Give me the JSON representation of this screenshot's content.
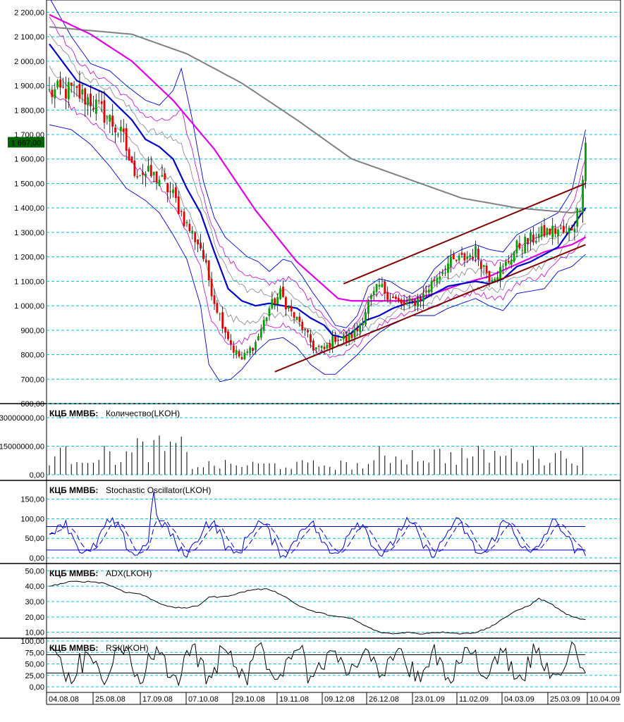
{
  "chart_data": {
    "type": "candlestick",
    "price_axis": {
      "ticks": [
        "2 200,00",
        "2 100,00",
        "2 000,00",
        "1 900,00",
        "1 800,00",
        "1 700,00",
        "1 600,00",
        "1 500,00",
        "1 400,00",
        "1 300,00",
        "1 200,00",
        "1 100,00",
        "1 000,00",
        "900,00",
        "800,00",
        "700,00",
        "600,00"
      ],
      "range": [
        600,
        2250
      ],
      "current_price_tag": "1 667,00"
    },
    "x_axis": {
      "dates": [
        "04.08.08",
        "25.08.08",
        "17.09.08",
        "07.10.08",
        "29.10.08",
        "19.11.08",
        "09.12.08",
        "26.12.08",
        "23.01.09",
        "11.02.09",
        "04.03.09",
        "25.03.09",
        "10.04.09"
      ],
      "bar_count": 175
    },
    "price_series_anchors": [
      [
        0,
        1870
      ],
      [
        8,
        1880
      ],
      [
        15,
        1840
      ],
      [
        22,
        1760
      ],
      [
        27,
        1680
      ],
      [
        30,
        1560
      ],
      [
        35,
        1540
      ],
      [
        40,
        1520
      ],
      [
        45,
        1450
      ],
      [
        50,
        1330
      ],
      [
        55,
        1240
      ],
      [
        60,
        1020
      ],
      [
        64,
        900
      ],
      [
        67,
        820
      ],
      [
        70,
        780
      ],
      [
        75,
        850
      ],
      [
        80,
        990
      ],
      [
        84,
        1050
      ],
      [
        88,
        970
      ],
      [
        92,
        910
      ],
      [
        96,
        830
      ],
      [
        100,
        820
      ],
      [
        104,
        870
      ],
      [
        108,
        860
      ],
      [
        112,
        900
      ],
      [
        116,
        1010
      ],
      [
        120,
        1080
      ],
      [
        124,
        1040
      ],
      [
        128,
        1000
      ],
      [
        132,
        1010
      ],
      [
        136,
        1040
      ],
      [
        140,
        1110
      ],
      [
        145,
        1170
      ],
      [
        150,
        1190
      ],
      [
        155,
        1220
      ],
      [
        160,
        1120
      ],
      [
        165,
        1150
      ],
      [
        170,
        1240
      ],
      [
        175,
        1270
      ],
      [
        180,
        1300
      ],
      [
        185,
        1310
      ],
      [
        188,
        1290
      ],
      [
        191,
        1340
      ],
      [
        193,
        1420
      ],
      [
        195,
        1667
      ]
    ],
    "moving_averages": [
      {
        "name": "MA200",
        "color": "#808080",
        "anchors": [
          [
            0,
            2140
          ],
          [
            30,
            2110
          ],
          [
            50,
            2030
          ],
          [
            70,
            1910
          ],
          [
            90,
            1760
          ],
          [
            110,
            1600
          ],
          [
            130,
            1520
          ],
          [
            150,
            1440
          ],
          [
            170,
            1400
          ],
          [
            190,
            1380
          ],
          [
            195,
            1390
          ]
        ]
      },
      {
        "name": "MA50",
        "color": "#e000e0",
        "anchors": [
          [
            0,
            2190
          ],
          [
            15,
            2110
          ],
          [
            30,
            2000
          ],
          [
            45,
            1840
          ],
          [
            60,
            1640
          ],
          [
            75,
            1390
          ],
          [
            90,
            1180
          ],
          [
            100,
            1080
          ],
          [
            105,
            1030
          ],
          [
            110,
            1020
          ],
          [
            120,
            1020
          ],
          [
            130,
            1020
          ],
          [
            140,
            1050
          ],
          [
            150,
            1090
          ],
          [
            160,
            1120
          ],
          [
            170,
            1170
          ],
          [
            180,
            1220
          ],
          [
            190,
            1250
          ],
          [
            195,
            1280
          ]
        ]
      },
      {
        "name": "MA20",
        "color": "#0000c8",
        "anchors": [
          [
            0,
            2070
          ],
          [
            10,
            1920
          ],
          [
            20,
            1870
          ],
          [
            30,
            1760
          ],
          [
            35,
            1680
          ],
          [
            40,
            1650
          ],
          [
            45,
            1600
          ],
          [
            50,
            1480
          ],
          [
            55,
            1380
          ],
          [
            60,
            1220
          ],
          [
            65,
            1070
          ],
          [
            70,
            1020
          ],
          [
            75,
            1000
          ],
          [
            80,
            1010
          ],
          [
            85,
            1000
          ],
          [
            90,
            990
          ],
          [
            95,
            950
          ],
          [
            100,
            920
          ],
          [
            103,
            880
          ],
          [
            107,
            870
          ],
          [
            110,
            890
          ],
          [
            115,
            940
          ],
          [
            120,
            960
          ],
          [
            125,
            990
          ],
          [
            130,
            1010
          ],
          [
            135,
            1020
          ],
          [
            140,
            1050
          ],
          [
            145,
            1080
          ],
          [
            150,
            1090
          ],
          [
            155,
            1100
          ],
          [
            160,
            1090
          ],
          [
            165,
            1110
          ],
          [
            170,
            1160
          ],
          [
            175,
            1180
          ],
          [
            180,
            1210
          ],
          [
            185,
            1240
          ],
          [
            190,
            1320
          ],
          [
            195,
            1400
          ]
        ]
      }
    ],
    "bollinger_upper_anchors": [
      [
        0,
        2260
      ],
      [
        8,
        2100
      ],
      [
        15,
        1990
      ],
      [
        22,
        1960
      ],
      [
        28,
        1900
      ],
      [
        35,
        1840
      ],
      [
        40,
        1820
      ],
      [
        45,
        1880
      ],
      [
        48,
        1970
      ],
      [
        52,
        1760
      ],
      [
        56,
        1510
      ],
      [
        60,
        1360
      ],
      [
        64,
        1280
      ],
      [
        68,
        1240
      ],
      [
        72,
        1200
      ],
      [
        76,
        1180
      ],
      [
        80,
        1140
      ],
      [
        85,
        1190
      ],
      [
        88,
        1180
      ],
      [
        92,
        1120
      ],
      [
        96,
        1050
      ],
      [
        100,
        990
      ],
      [
        104,
        920
      ],
      [
        108,
        910
      ],
      [
        112,
        960
      ],
      [
        116,
        1080
      ],
      [
        120,
        1110
      ],
      [
        124,
        1100
      ],
      [
        128,
        1070
      ],
      [
        132,
        1050
      ],
      [
        136,
        1080
      ],
      [
        140,
        1150
      ],
      [
        145,
        1200
      ],
      [
        150,
        1230
      ],
      [
        155,
        1250
      ],
      [
        160,
        1230
      ],
      [
        165,
        1220
      ],
      [
        170,
        1290
      ],
      [
        175,
        1320
      ],
      [
        180,
        1350
      ],
      [
        185,
        1380
      ],
      [
        190,
        1470
      ],
      [
        195,
        1720
      ]
    ],
    "bollinger_lower_anchors": [
      [
        0,
        1740
      ],
      [
        8,
        1720
      ],
      [
        15,
        1660
      ],
      [
        22,
        1570
      ],
      [
        28,
        1480
      ],
      [
        35,
        1430
      ],
      [
        40,
        1380
      ],
      [
        45,
        1290
      ],
      [
        50,
        1190
      ],
      [
        55,
        1000
      ],
      [
        58,
        760
      ],
      [
        62,
        690
      ],
      [
        66,
        700
      ],
      [
        70,
        740
      ],
      [
        75,
        810
      ],
      [
        80,
        860
      ],
      [
        85,
        870
      ],
      [
        90,
        830
      ],
      [
        95,
        760
      ],
      [
        100,
        720
      ],
      [
        104,
        720
      ],
      [
        108,
        760
      ],
      [
        112,
        800
      ],
      [
        116,
        850
      ],
      [
        120,
        890
      ],
      [
        124,
        920
      ],
      [
        128,
        940
      ],
      [
        132,
        960
      ],
      [
        136,
        960
      ],
      [
        140,
        960
      ],
      [
        145,
        990
      ],
      [
        150,
        1010
      ],
      [
        155,
        1030
      ],
      [
        160,
        1000
      ],
      [
        165,
        980
      ],
      [
        170,
        1050
      ],
      [
        175,
        1060
      ],
      [
        180,
        1070
      ],
      [
        185,
        1140
      ],
      [
        190,
        1160
      ],
      [
        195,
        1210
      ]
    ],
    "channel_lines": [
      {
        "name": "channel-upper",
        "color": "#800000",
        "from": [
          107,
          1090
        ],
        "to": [
          195,
          1500
        ]
      },
      {
        "name": "channel-lower",
        "color": "#800000",
        "from": [
          82,
          730
        ],
        "to": [
          195,
          1250
        ]
      }
    ],
    "panels": [
      {
        "source": "КЦБ ММВБ:",
        "title": "Количество(LKOH)",
        "title_color": "#000000",
        "ticks": [
          "30000000,00",
          "15000000,00",
          "0,00"
        ],
        "range": [
          0,
          30000000
        ]
      },
      {
        "source": "КЦБ ММВБ:",
        "title": "Stochastic Oscillator(LKOH)",
        "title_color": "#1a1aa8",
        "ticks": [
          "150,00",
          "100,00",
          "50,00",
          "0,00"
        ],
        "range": [
          0,
          180
        ],
        "levels": [
          20,
          80
        ]
      },
      {
        "source": "КЦБ ММВБ:",
        "title": "ADX(LKOH)",
        "title_color": "#000000",
        "ticks": [
          "50,00",
          "40,00",
          "30,00",
          "20,00",
          "10,00"
        ],
        "range": [
          8,
          52
        ]
      },
      {
        "source": "КЦБ ММВБ:",
        "title": "RSI(LKOH)",
        "title_color": "#000000",
        "ticks": [
          "100,00",
          "75,00",
          "50,00",
          "25,00",
          "0,00"
        ],
        "range": [
          0,
          100
        ],
        "levels": [
          30,
          70
        ]
      }
    ],
    "adx_anchors": [
      [
        0,
        40
      ],
      [
        8,
        43
      ],
      [
        15,
        43
      ],
      [
        20,
        42
      ],
      [
        28,
        36
      ],
      [
        33,
        35
      ],
      [
        40,
        29
      ],
      [
        45,
        26
      ],
      [
        50,
        26
      ],
      [
        54,
        27
      ],
      [
        58,
        33
      ],
      [
        63,
        33
      ],
      [
        68,
        35
      ],
      [
        72,
        37
      ],
      [
        75,
        38
      ],
      [
        80,
        38
      ],
      [
        85,
        34
      ],
      [
        90,
        28
      ],
      [
        95,
        24
      ],
      [
        100,
        22
      ],
      [
        105,
        20
      ],
      [
        110,
        19
      ],
      [
        115,
        14
      ],
      [
        120,
        10
      ],
      [
        125,
        9
      ],
      [
        130,
        10
      ],
      [
        135,
        9
      ],
      [
        140,
        10
      ],
      [
        145,
        10
      ],
      [
        150,
        9
      ],
      [
        155,
        10
      ],
      [
        160,
        13
      ],
      [
        165,
        19
      ],
      [
        170,
        24
      ],
      [
        175,
        28
      ],
      [
        178,
        32
      ],
      [
        182,
        29
      ],
      [
        186,
        24
      ],
      [
        190,
        20
      ],
      [
        195,
        18
      ],
      [
        200,
        20
      ],
      [
        205,
        23
      ],
      [
        210,
        24
      ],
      [
        213,
        21
      ],
      [
        216,
        20
      ],
      [
        220,
        26
      ]
    ],
    "colors": {
      "up": "#00a000",
      "down": "#e00000",
      "grid": "#00c0d8",
      "ma200": "#808080",
      "ma50": "#e000e0",
      "ma20": "#0000c8",
      "channel": "#800000",
      "price_tag": "#006400"
    }
  }
}
